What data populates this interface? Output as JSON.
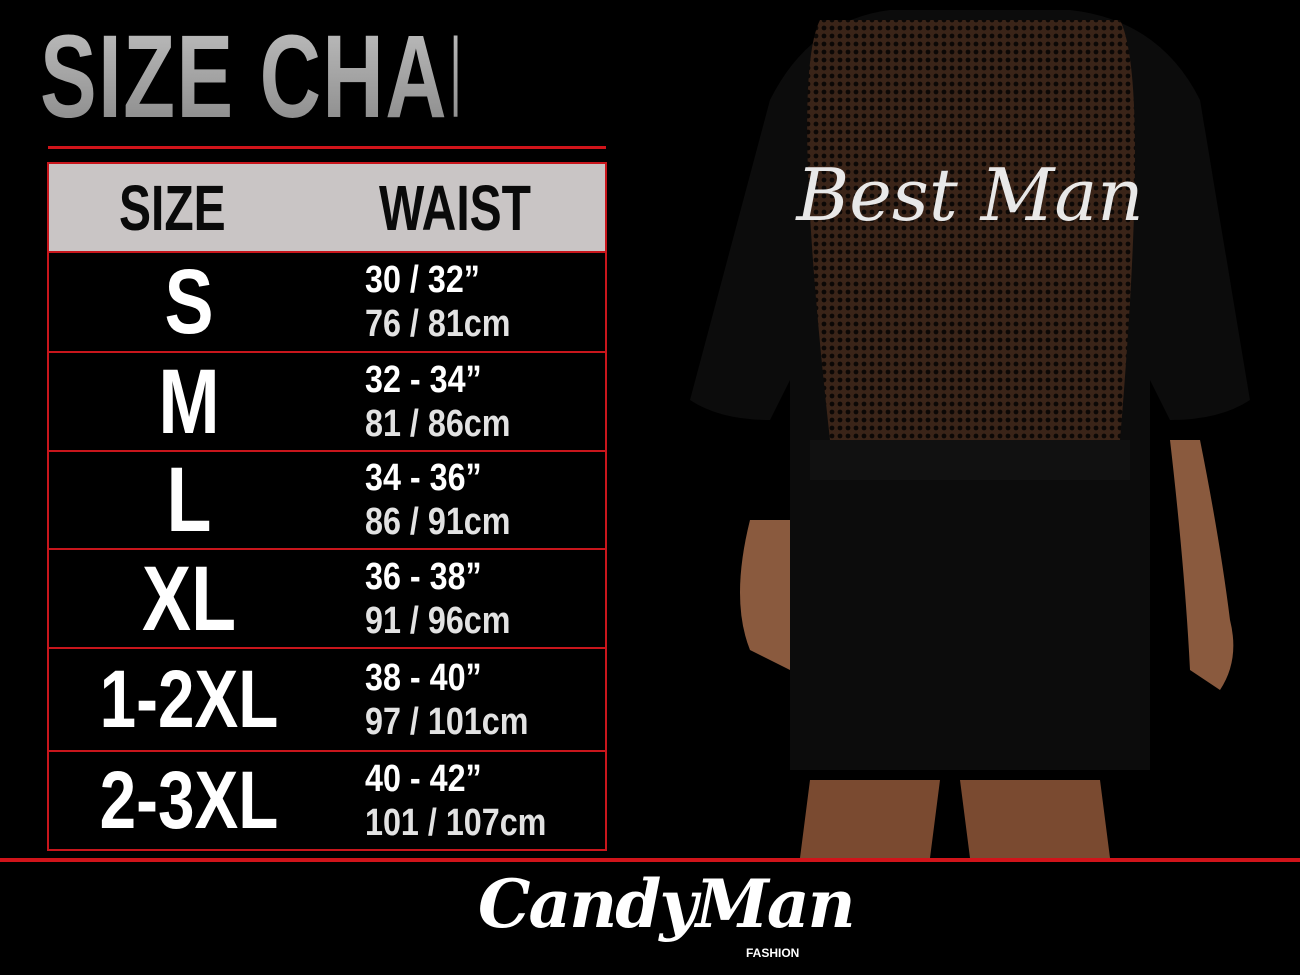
{
  "title": "SIZE CHART",
  "table": {
    "headers": {
      "size": "SIZE",
      "waist": "WAIST"
    },
    "rows": [
      {
        "size": "S",
        "inches": "30 / 32”",
        "cm": "76 / 81cm"
      },
      {
        "size": "M",
        "inches": "32 - 34”",
        "cm": "81 / 86cm"
      },
      {
        "size": "L",
        "inches": "34 - 36”",
        "cm": "86 / 91cm"
      },
      {
        "size": "XL",
        "inches": "36 - 38”",
        "cm": "91 / 96cm"
      },
      {
        "size": "1-2XL",
        "inches": "38 - 40”",
        "cm": "97 / 101cm"
      },
      {
        "size": "2-3XL",
        "inches": "40 - 42”",
        "cm": "101 / 107cm"
      }
    ]
  },
  "garment_text": "Best Man",
  "brand": {
    "name": "CandyMan",
    "tagline": "FASHION"
  },
  "colors": {
    "accent": "#d0141a",
    "header_bg": "#c9c5c5",
    "background": "#000000"
  }
}
